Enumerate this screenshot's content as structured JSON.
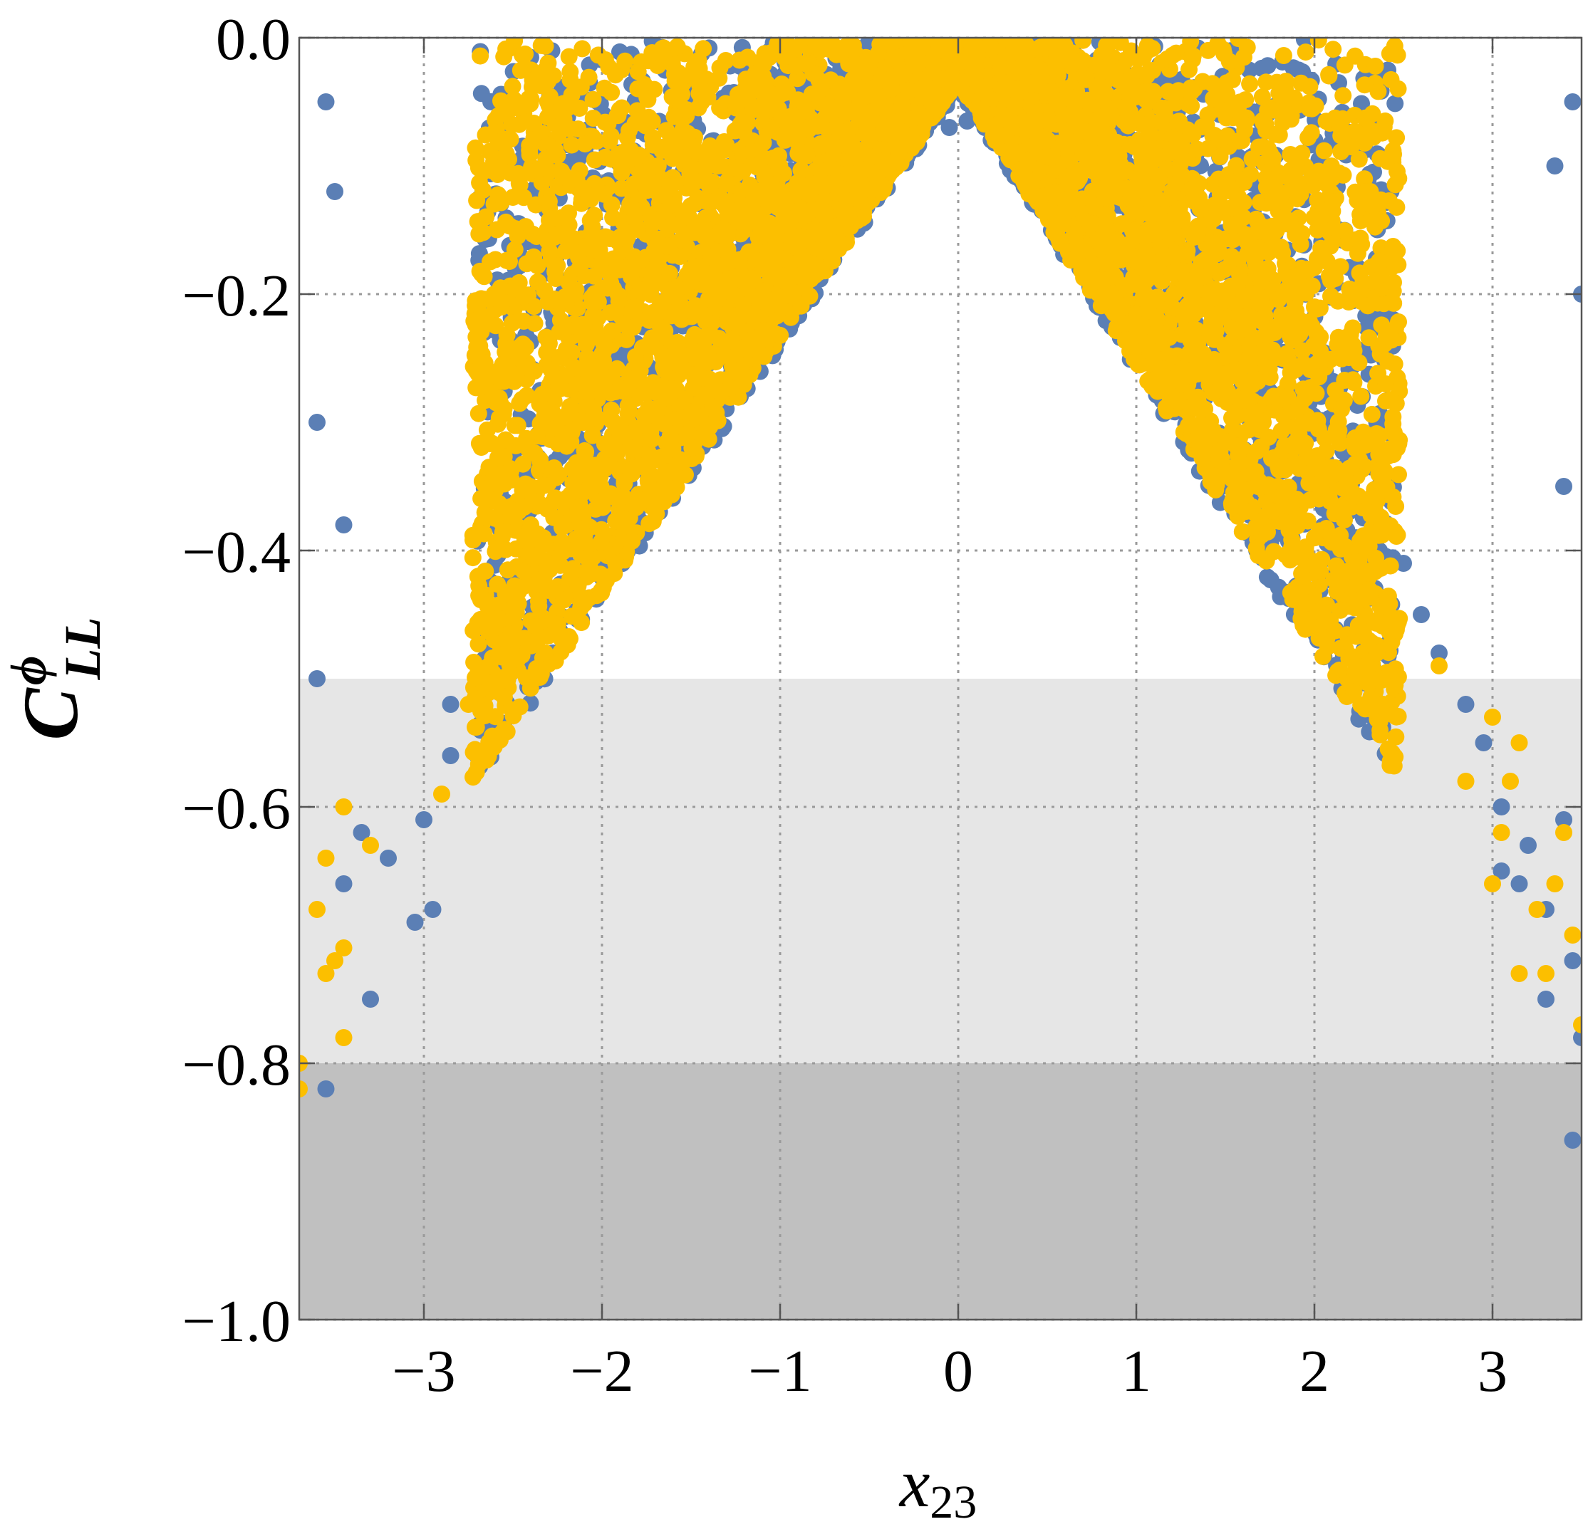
{
  "chart_data": {
    "type": "scatter",
    "title": "",
    "xlabel": {
      "main": "x",
      "sub": "23"
    },
    "ylabel": {
      "main": "C",
      "sup": "ϕ",
      "sub": "LL"
    },
    "xlim": [
      -3.7,
      3.5
    ],
    "ylim": [
      -1.0,
      0.0
    ],
    "x_ticks": [
      -3,
      -2,
      -1,
      0,
      1,
      2,
      3
    ],
    "x_tick_labels": [
      "−3",
      "−2",
      "−1",
      "0",
      "1",
      "2",
      "3"
    ],
    "y_ticks": [
      0.0,
      -0.2,
      -0.4,
      -0.6,
      -0.8,
      -1.0
    ],
    "y_tick_labels": [
      "0.0",
      "−0.2",
      "−0.4",
      "−0.6",
      "−0.8",
      "−1.0"
    ],
    "grid": true,
    "legend": "none",
    "bands": [
      {
        "y_from": -0.8,
        "y_to": -0.5,
        "color": "#e6e6e6"
      },
      {
        "y_from": -1.0,
        "y_to": -0.8,
        "color": "#c0c0c0"
      }
    ],
    "series": [
      {
        "color": "#5b7fb5",
        "envelope": {
          "apex": [
            0.0,
            -0.04
          ],
          "slope_left": 0.2,
          "slope_right": 0.22
        },
        "points": [
          [
            -3.55,
            -0.82
          ],
          [
            -3.3,
            -0.75
          ],
          [
            -3.05,
            -0.69
          ],
          [
            -2.95,
            -0.68
          ],
          [
            -3.2,
            -0.64
          ],
          [
            -3.35,
            -0.62
          ],
          [
            -3.45,
            -0.66
          ],
          [
            -3.0,
            -0.61
          ],
          [
            -2.85,
            -0.56
          ],
          [
            -2.65,
            -0.53
          ],
          [
            -2.85,
            -0.52
          ],
          [
            -2.2,
            -0.41
          ],
          [
            -2.45,
            -0.46
          ],
          [
            -1.7,
            -0.27
          ],
          [
            -1.35,
            -0.18
          ],
          [
            -1.0,
            -0.14
          ],
          [
            -0.85,
            -0.11
          ],
          [
            -0.05,
            -0.07
          ],
          [
            0.05,
            -0.065
          ],
          [
            0.15,
            -0.07
          ],
          [
            0.9,
            -0.11
          ],
          [
            1.0,
            -0.12
          ],
          [
            1.5,
            -0.18
          ],
          [
            1.95,
            -0.2
          ],
          [
            2.35,
            -0.3
          ],
          [
            2.5,
            -0.41
          ],
          [
            2.6,
            -0.45
          ],
          [
            2.7,
            -0.48
          ],
          [
            2.85,
            -0.52
          ],
          [
            2.95,
            -0.55
          ],
          [
            3.05,
            -0.6
          ],
          [
            3.2,
            -0.63
          ],
          [
            3.3,
            -0.68
          ],
          [
            3.15,
            -0.66
          ],
          [
            3.45,
            -0.72
          ],
          [
            3.5,
            -0.78
          ],
          [
            3.45,
            -0.86
          ],
          [
            3.4,
            -0.61
          ],
          [
            3.3,
            -0.75
          ],
          [
            3.05,
            -0.65
          ],
          [
            -3.6,
            -0.3
          ],
          [
            -3.5,
            -0.12
          ],
          [
            -3.55,
            -0.05
          ],
          [
            -3.45,
            -0.38
          ],
          [
            -3.6,
            -0.5
          ],
          [
            3.45,
            -0.05
          ],
          [
            3.5,
            -0.2
          ],
          [
            3.35,
            -0.1
          ],
          [
            3.4,
            -0.35
          ]
        ]
      },
      {
        "color": "#fcbf00",
        "envelope": {
          "apex": [
            0.0,
            -0.035
          ],
          "slope_left": 0.2,
          "slope_right": 0.22
        },
        "points": [
          [
            -3.7,
            -0.8
          ],
          [
            -3.7,
            -0.82
          ],
          [
            -3.45,
            -0.78
          ],
          [
            -3.55,
            -0.73
          ],
          [
            -3.5,
            -0.72
          ],
          [
            -3.45,
            -0.71
          ],
          [
            -3.6,
            -0.68
          ],
          [
            -3.55,
            -0.64
          ],
          [
            -3.3,
            -0.63
          ],
          [
            -2.9,
            -0.59
          ],
          [
            -3.45,
            -0.6
          ],
          [
            -2.75,
            -0.52
          ],
          [
            -2.6,
            -0.46
          ],
          [
            -2.4,
            -0.38
          ],
          [
            -1.9,
            -0.31
          ],
          [
            -1.85,
            -0.29
          ],
          [
            -1.7,
            -0.22
          ],
          [
            -1.5,
            -0.19
          ],
          [
            -1.2,
            -0.15
          ],
          [
            -0.9,
            -0.12
          ],
          [
            -0.7,
            -0.09
          ],
          [
            -0.5,
            -0.08
          ],
          [
            0.3,
            -0.07
          ],
          [
            0.5,
            -0.08
          ],
          [
            0.7,
            -0.09
          ],
          [
            1.2,
            -0.12
          ],
          [
            1.45,
            -0.16
          ],
          [
            1.7,
            -0.19
          ],
          [
            2.0,
            -0.21
          ],
          [
            2.4,
            -0.27
          ],
          [
            1.85,
            -0.28
          ],
          [
            1.9,
            -0.36
          ],
          [
            2.0,
            -0.39
          ],
          [
            1.95,
            -0.4
          ],
          [
            2.3,
            -0.47
          ],
          [
            2.35,
            -0.48
          ],
          [
            2.7,
            -0.49
          ],
          [
            3.0,
            -0.53
          ],
          [
            3.15,
            -0.55
          ],
          [
            3.1,
            -0.58
          ],
          [
            2.85,
            -0.58
          ],
          [
            3.05,
            -0.62
          ],
          [
            3.35,
            -0.66
          ],
          [
            3.25,
            -0.68
          ],
          [
            3.0,
            -0.66
          ],
          [
            3.3,
            -0.73
          ],
          [
            3.15,
            -0.73
          ],
          [
            3.5,
            -0.77
          ],
          [
            3.45,
            -0.7
          ],
          [
            3.4,
            -0.62
          ]
        ]
      }
    ]
  }
}
